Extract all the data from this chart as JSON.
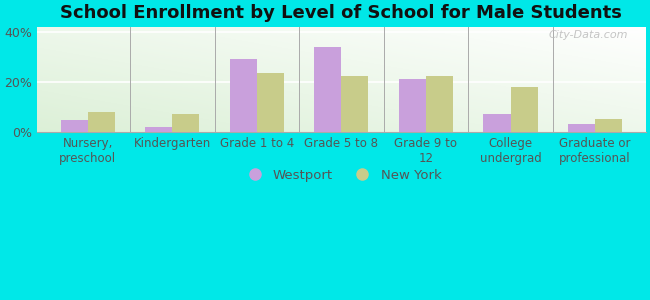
{
  "title": "School Enrollment by Level of School for Male Students",
  "categories": [
    "Nursery,\npreschool",
    "Kindergarten",
    "Grade 1 to 4",
    "Grade 5 to 8",
    "Grade 9 to\n12",
    "College\nundergrad",
    "Graduate or\nprofessional"
  ],
  "westport": [
    5.0,
    2.0,
    29.0,
    34.0,
    21.0,
    7.5,
    3.5
  ],
  "new_york": [
    8.0,
    7.5,
    23.5,
    22.5,
    22.5,
    18.0,
    5.5
  ],
  "westport_color": "#c9a0dc",
  "new_york_color": "#c8cc8a",
  "ylim": [
    0,
    42
  ],
  "yticks": [
    0,
    20,
    40
  ],
  "ytick_labels": [
    "0%",
    "20%",
    "40%"
  ],
  "background_fig": "#00e8e8",
  "title_fontsize": 13,
  "title_color": "#111111",
  "legend_labels": [
    "Westport",
    "New York"
  ],
  "watermark": "City-Data.com",
  "tick_color": "#555555",
  "axis_label_fontsize": 8.5,
  "ytick_fontsize": 9.0
}
